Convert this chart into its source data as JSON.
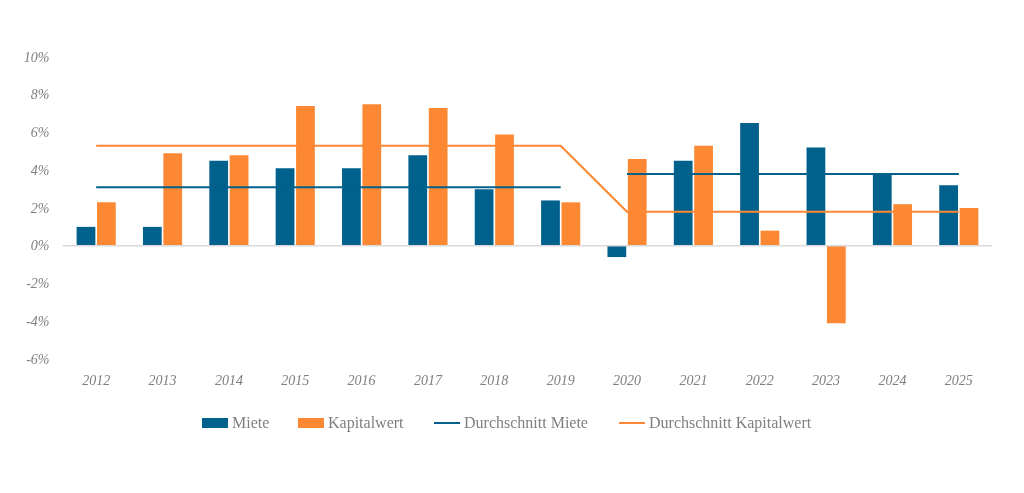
{
  "chart_data": {
    "type": "bar",
    "categories": [
      "2012",
      "2013",
      "2014",
      "2015",
      "2016",
      "2017",
      "2018",
      "2019",
      "2020",
      "2021",
      "2022",
      "2023",
      "2024",
      "2025"
    ],
    "series": [
      {
        "name": "Miete",
        "color": "#00618c",
        "values": [
          1.0,
          1.0,
          4.5,
          4.1,
          4.1,
          4.8,
          3.0,
          2.4,
          -0.6,
          4.5,
          6.5,
          5.2,
          3.8,
          3.2
        ]
      },
      {
        "name": "Kapitalwert",
        "color": "#fd8833",
        "values": [
          2.3,
          4.9,
          4.8,
          7.4,
          7.5,
          7.3,
          5.9,
          2.3,
          4.6,
          5.3,
          0.8,
          -4.1,
          2.2,
          2.0
        ]
      },
      {
        "name": "Durchschnitt Miete",
        "type": "line",
        "color": "#00618c",
        "values": [
          3.1,
          3.1,
          3.1,
          3.1,
          3.1,
          3.1,
          3.1,
          3.1,
          null,
          null,
          null,
          null,
          null,
          null
        ]
      },
      {
        "name": "Durchschnitt Kapitalwert",
        "type": "line",
        "color": "#fd8833",
        "values": [
          5.3,
          5.3,
          5.3,
          5.3,
          5.3,
          5.3,
          5.3,
          5.3,
          1.8,
          1.8,
          1.8,
          1.8,
          1.8,
          1.8
        ]
      },
      {
        "type": "line",
        "color": "#00618c",
        "values": [
          null,
          null,
          null,
          null,
          null,
          null,
          null,
          null,
          3.8,
          3.8,
          3.8,
          3.8,
          3.8,
          3.8
        ]
      }
    ],
    "ylim": [
      -6,
      10
    ],
    "yticks": [
      {
        "value": -6,
        "label": "-6%"
      },
      {
        "value": -4,
        "label": "-4%"
      },
      {
        "value": -2,
        "label": "-2%"
      },
      {
        "value": 0,
        "label": "0%"
      },
      {
        "value": 2,
        "label": "2%"
      },
      {
        "value": 4,
        "label": "4%"
      },
      {
        "value": 6,
        "label": "6%"
      },
      {
        "value": 8,
        "label": "8%"
      },
      {
        "value": 10,
        "label": "10%"
      }
    ],
    "ref_lines": [
      {
        "axis": "y",
        "value": 0,
        "color": "#d9d9d9"
      }
    ],
    "legend": "bottom"
  }
}
